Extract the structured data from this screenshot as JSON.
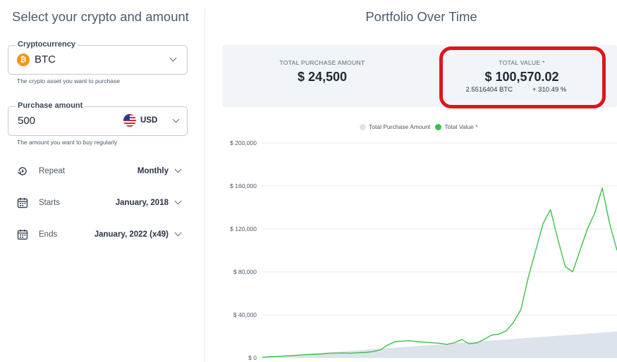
{
  "left": {
    "title": "Select your crypto and amount",
    "crypto": {
      "label": "Cryptocurrency",
      "value": "BTC",
      "icon": "bitcoin-icon",
      "help": "The crypto asset you want to purchase"
    },
    "amount": {
      "label": "Purchase amount",
      "value": "500",
      "currency": "USD",
      "currency_icon": "us-flag-icon",
      "help": "The amount you want to buy regularly"
    },
    "repeat": {
      "label": "Repeat",
      "value": "Monthly",
      "icon": "repeat-icon"
    },
    "starts": {
      "label": "Starts",
      "value": "January, 2018",
      "icon": "calendar-icon"
    },
    "ends": {
      "label": "Ends",
      "value": "January, 2022 (x49)",
      "icon": "calendar-icon"
    }
  },
  "right": {
    "title": "Portfolio Over Time",
    "total_purchase": {
      "caption": "TOTAL PURCHASE AMOUNT",
      "value": "$ 24,500"
    },
    "total_value": {
      "caption": "TOTAL VALUE *",
      "value": "$ 100,570.02",
      "btc": "2.5516404 BTC",
      "change": "+ 310.49 %"
    },
    "highlight_color": "#e0141b"
  },
  "chart_data": {
    "type": "area",
    "legend": [
      "Total Purchase Amount",
      "Total Value *"
    ],
    "legend_position": "top-center",
    "ytick_labels": [
      "$ 200,000",
      "$ 160,000",
      "$ 120,000",
      "$ 80,000",
      "$ 40,000",
      "$ 0"
    ],
    "yticks": [
      200000,
      160000,
      120000,
      80000,
      40000,
      0
    ],
    "ylim": [
      0,
      200000
    ],
    "grid": true,
    "series": [
      {
        "name": "Total Purchase Amount",
        "color": "#dde3ea",
        "type": "area",
        "values": [
          500,
          1000,
          1500,
          2000,
          2500,
          3000,
          3500,
          4000,
          4500,
          5000,
          5500,
          6000,
          6500,
          7000,
          7500,
          8000,
          8500,
          9000,
          9500,
          10000,
          10500,
          11000,
          11500,
          12000,
          12500,
          13000,
          13500,
          14000,
          14500,
          15000,
          15500,
          16000,
          16500,
          17000,
          17500,
          18000,
          18500,
          19000,
          19500,
          20000,
          20500,
          21000,
          21500,
          22000,
          22500,
          23000,
          23500,
          24000,
          24500
        ]
      },
      {
        "name": "Total Value *",
        "color": "#3cc04a",
        "type": "line",
        "values": [
          500,
          900,
          1200,
          1600,
          2000,
          2500,
          3000,
          3200,
          3500,
          4200,
          4400,
          4500,
          4200,
          4800,
          5000,
          5800,
          7500,
          12000,
          15000,
          15500,
          15800,
          15000,
          14500,
          14000,
          13500,
          12500,
          14000,
          17000,
          13000,
          13800,
          17000,
          21000,
          22000,
          25000,
          33000,
          45000,
          75000,
          100000,
          125000,
          138000,
          110000,
          85000,
          80000,
          100000,
          120000,
          135000,
          158000,
          125000,
          100000
        ]
      }
    ]
  }
}
